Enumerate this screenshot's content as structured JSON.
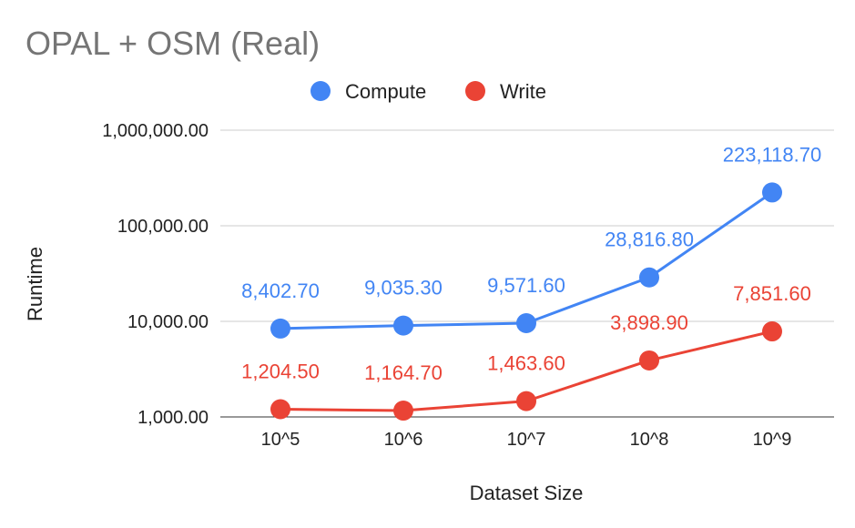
{
  "chart_data": {
    "type": "line",
    "title": "OPAL + OSM (Real)",
    "xlabel": "Dataset Size",
    "ylabel": "Runtime",
    "categories": [
      "10^5",
      "10^6",
      "10^7",
      "10^8",
      "10^9"
    ],
    "y_scale": "log",
    "ylim": [
      1000,
      1000000
    ],
    "y_ticks": [
      {
        "value": 1000,
        "label": "1,000.00"
      },
      {
        "value": 10000,
        "label": "10,000.00"
      },
      {
        "value": 100000,
        "label": "100,000.00"
      },
      {
        "value": 1000000,
        "label": "1,000,000.00"
      }
    ],
    "grid": true,
    "legend_position": "top",
    "series": [
      {
        "name": "Compute",
        "color": "#4285F4",
        "values": [
          8402.7,
          9035.3,
          9571.6,
          28816.8,
          223118.7
        ],
        "labels": [
          "8,402.70",
          "9,035.30",
          "9,571.60",
          "28,816.80",
          "223,118.70"
        ]
      },
      {
        "name": "Write",
        "color": "#EA4335",
        "values": [
          1204.5,
          1164.7,
          1463.6,
          3898.9,
          7851.6
        ],
        "labels": [
          "1,204.50",
          "1,164.70",
          "1,463.60",
          "3,898.90",
          "7,851.60"
        ]
      }
    ]
  }
}
